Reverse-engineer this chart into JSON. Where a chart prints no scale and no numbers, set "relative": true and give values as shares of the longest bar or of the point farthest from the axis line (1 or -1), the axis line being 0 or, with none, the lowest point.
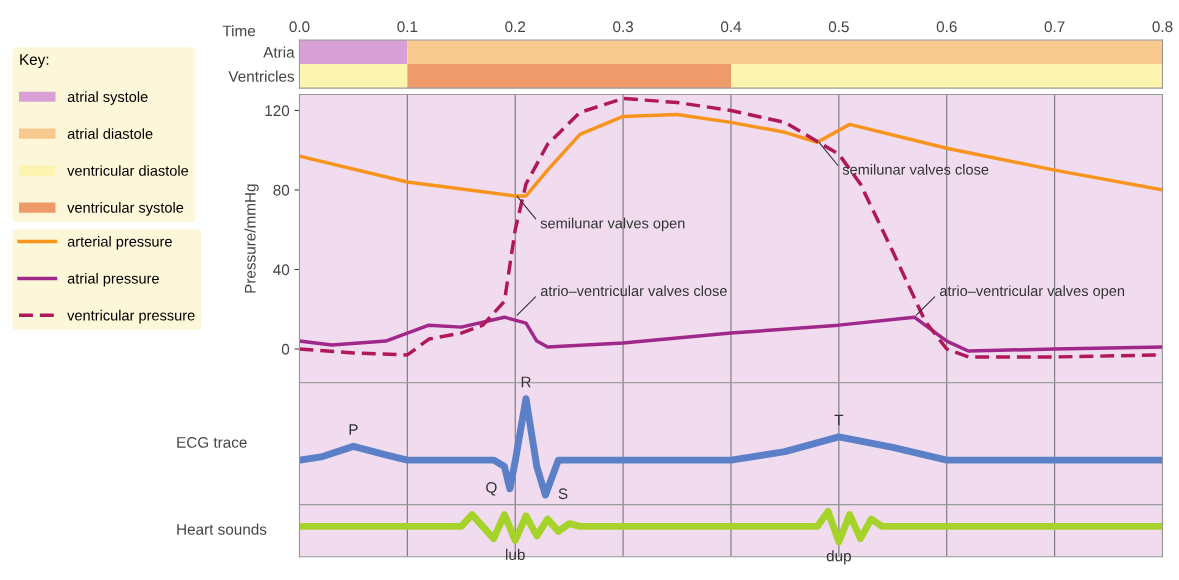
{
  "chart_data": [
    {
      "type": "bar",
      "orientation": "horizontal",
      "stacked": true,
      "categories": [
        "Atria",
        "Ventricles"
      ],
      "xlabel": "Time",
      "xlim": [
        0,
        0.8
      ],
      "xticks": [
        {
          "value": 0,
          "label": "0.0"
        },
        0.1,
        0.2,
        0.3,
        0.4,
        0.5,
        0.6,
        0.7,
        0.8
      ],
      "legend": "left",
      "legend_title": "Key:",
      "series": [
        {
          "name": "atrial systole",
          "color": "#d9a0d6",
          "values": [
            0.1,
            null
          ]
        },
        {
          "name": "atrial diastole",
          "color": "#f7c98f",
          "values": [
            0.7,
            null
          ]
        },
        {
          "name": "ventricular diastole",
          "color": "#fcf5b0",
          "values": [
            null,
            0.1
          ]
        },
        {
          "name": "ventricular systole",
          "color": "#ef9a6a",
          "values": [
            null,
            0.3
          ]
        },
        {
          "color": "#fcf5b0",
          "values": [
            null,
            0.4
          ]
        }
      ]
    },
    {
      "type": "line",
      "ylabel": "Pressure/mmHg",
      "xlim": [
        0,
        0.8
      ],
      "ylim": [
        -17,
        128
      ],
      "xticks": [
        0,
        0.1,
        0.2,
        0.3,
        0.4,
        0.5,
        0.6,
        0.7,
        0.8
      ],
      "yticks": [
        0,
        40,
        80,
        120
      ],
      "tick_labels": "y",
      "grid": "x",
      "legend": "left",
      "series": [
        {
          "name": "arterial pressure",
          "color": "#f7941d",
          "line_style": "solid",
          "x": [
            0,
            0.1,
            0.2,
            0.21,
            0.23,
            0.26,
            0.3,
            0.35,
            0.4,
            0.45,
            0.48,
            0.51,
            0.6,
            0.7,
            0.8
          ],
          "values": [
            97,
            84,
            77,
            77,
            90,
            108,
            117,
            118,
            114,
            109,
            104,
            113,
            101,
            90,
            80
          ]
        },
        {
          "name": "atrial pressure",
          "color": "#a0288a",
          "line_style": "solid",
          "x": [
            0,
            0.03,
            0.08,
            0.12,
            0.15,
            0.19,
            0.21,
            0.22,
            0.23,
            0.3,
            0.4,
            0.5,
            0.57,
            0.6,
            0.62,
            0.7,
            0.8
          ],
          "values": [
            4,
            2,
            4,
            12,
            11,
            16,
            13,
            4,
            1,
            3,
            8,
            12,
            16,
            4,
            -1,
            0,
            1
          ]
        },
        {
          "name": "ventricular pressure",
          "color": "#b0185a",
          "line_style": "dashed",
          "x": [
            0,
            0.05,
            0.1,
            0.12,
            0.15,
            0.17,
            0.19,
            0.2,
            0.21,
            0.23,
            0.26,
            0.3,
            0.35,
            0.4,
            0.45,
            0.5,
            0.52,
            0.55,
            0.58,
            0.6,
            0.62,
            0.7,
            0.8
          ],
          "values": [
            0,
            -2,
            -3,
            5,
            8,
            12,
            24,
            60,
            83,
            103,
            119,
            126,
            124,
            120,
            114,
            98,
            83,
            49,
            14,
            0,
            -4,
            -4,
            -3
          ]
        }
      ],
      "annotations": [
        {
          "text": "semilunar valves open",
          "x": 0.2,
          "y": 78
        },
        {
          "text": "atrio–ventricular valves close",
          "x": 0.2,
          "y": 16
        },
        {
          "text": "semilunar valves close",
          "x": 0.48,
          "y": 105
        },
        {
          "text": "atrio–ventricular valves open",
          "x": 0.57,
          "y": 16
        }
      ]
    },
    {
      "type": "line",
      "relative": true,
      "ylabel": "ECG trace",
      "xlim": [
        0,
        0.8
      ],
      "xticks": [
        0,
        0.1,
        0.2,
        0.3,
        0.4,
        0.5,
        0.6,
        0.7,
        0.8
      ],
      "tick_labels": false,
      "grid": "x",
      "series": [
        {
          "color": "#5b80c8",
          "x": [
            0,
            0.02,
            0.05,
            0.08,
            0.1,
            0.18,
            0.19,
            0.195,
            0.2,
            0.21,
            0.22,
            0.228,
            0.24,
            0.4,
            0.45,
            0.5,
            0.55,
            0.6,
            0.8
          ],
          "values": [
            0.42,
            0.45,
            0.55,
            0.47,
            0.42,
            0.42,
            0.36,
            0.15,
            0.41,
            1.0,
            0.36,
            0.09,
            0.42,
            0.42,
            0.5,
            0.64,
            0.54,
            0.42,
            0.42
          ]
        }
      ],
      "annotations": [
        {
          "text": "P",
          "x": 0.05,
          "y": 0.55
        },
        {
          "text": "Q",
          "x": 0.195,
          "y": 0.15
        },
        {
          "text": "R",
          "x": 0.21,
          "y": 1.0
        },
        {
          "text": "S",
          "x": 0.228,
          "y": 0.09
        },
        {
          "text": "T",
          "x": 0.5,
          "y": 0.64
        }
      ]
    },
    {
      "type": "line",
      "relative": true,
      "ylabel": "Heart sounds",
      "xlim": [
        0,
        0.8
      ],
      "xticks": [
        0,
        0.1,
        0.2,
        0.3,
        0.4,
        0.5,
        0.6,
        0.7,
        0.8
      ],
      "tick_labels": false,
      "grid": "x",
      "series": [
        {
          "color": "#a6d32a",
          "x": [
            0,
            0.15,
            0.16,
            0.18,
            0.19,
            0.2,
            0.21,
            0.22,
            0.23,
            0.24,
            0.25,
            0.26,
            0.48,
            0.49,
            0.5,
            0.51,
            0.52,
            0.53,
            0.54,
            0.8
          ],
          "values": [
            0.67,
            0.67,
            0.93,
            0.4,
            0.93,
            0.36,
            0.9,
            0.46,
            0.83,
            0.56,
            0.73,
            0.67,
            0.67,
            1.0,
            0.33,
            0.93,
            0.4,
            0.83,
            0.67,
            0.67
          ]
        }
      ],
      "annotations": [
        {
          "text": "lub",
          "x": 0.2,
          "y": 0.36
        },
        {
          "text": "dup",
          "x": 0.5,
          "y": 0.33
        }
      ]
    }
  ]
}
